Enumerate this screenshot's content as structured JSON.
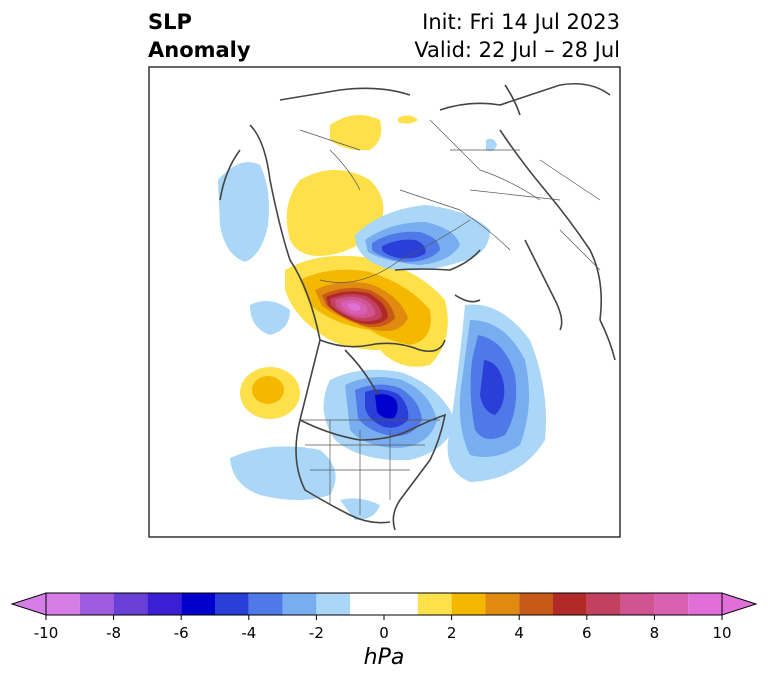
{
  "header": {
    "title_line1": "SLP",
    "title_line2": "Anomaly",
    "init": "Init: Fri 14 Jul 2023",
    "valid": "Valid: 22 Jul – 28 Jul"
  },
  "colorbar": {
    "unit": "hPa",
    "ticks": [
      "-10",
      "-8",
      "-6",
      "-4",
      "-2",
      "0",
      "2",
      "4",
      "6",
      "8",
      "10"
    ],
    "tick_values": [
      -10,
      -8,
      -6,
      -4,
      -2,
      0,
      2,
      4,
      6,
      8,
      10
    ],
    "levels": [
      -10,
      -9,
      -8,
      -7,
      -6,
      -5,
      -4,
      -3,
      -2,
      -1,
      1,
      2,
      3,
      4,
      5,
      6,
      7,
      8,
      9,
      10
    ],
    "colors": [
      "#d67ee8",
      "#a05ce0",
      "#6a3fd8",
      "#3b1fd4",
      "#0000cc",
      "#2a3fd8",
      "#4f79e8",
      "#78aef0",
      "#aad6f8",
      "#ffffff",
      "#fde04a",
      "#f4b800",
      "#e08a10",
      "#c85a18",
      "#b22a28",
      "#c24060",
      "#cf5490",
      "#d860b0",
      "#e070d8"
    ]
  }
}
